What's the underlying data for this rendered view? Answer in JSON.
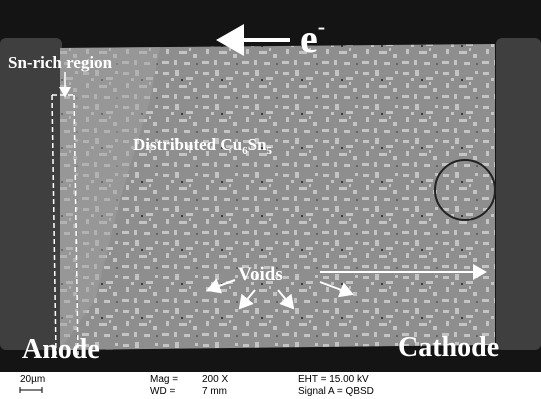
{
  "labels": {
    "electron": {
      "base": "e",
      "sup": "-"
    },
    "sn_rich": "Sn-rich region",
    "distributed": {
      "text": "Distributed Cu",
      "sub1": "6",
      "mid": "Sn",
      "sub2": "5"
    },
    "voids": "Voids",
    "anode": "Anode",
    "cathode": "Cathode"
  },
  "info_bar": {
    "scale": "20µm",
    "mag_label": "Mag =",
    "mag": "200 X",
    "wd_label": "WD =",
    "wd": "7 mm",
    "eht": "EHT = 15.00 kV",
    "signal": "Signal A = QBSD"
  }
}
